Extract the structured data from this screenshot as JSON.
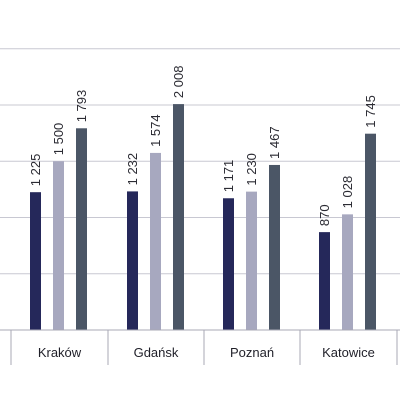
{
  "chart_data": {
    "type": "bar",
    "categories": [
      "Kraków",
      "Gdańsk",
      "Poznań",
      "Katowice"
    ],
    "series": [
      {
        "values": [
          1225,
          1232,
          1171,
          870
        ],
        "color": "#25285a"
      },
      {
        "values": [
          1500,
          1574,
          1230,
          1028
        ],
        "color": "#a7a8bf"
      },
      {
        "values": [
          1793,
          2008,
          1467,
          1745
        ],
        "color": "#4b5666"
      }
    ],
    "value_labels": [
      [
        "1 225",
        "1 232",
        "1 171",
        "870"
      ],
      [
        "1 500",
        "1 574",
        "1 230",
        "1 028"
      ],
      [
        "1 793",
        "2 008",
        "1 467",
        "1 745"
      ]
    ],
    "ylim": [
      0,
      2500
    ],
    "grid": true,
    "title": "",
    "xlabel": "",
    "ylabel": ""
  }
}
